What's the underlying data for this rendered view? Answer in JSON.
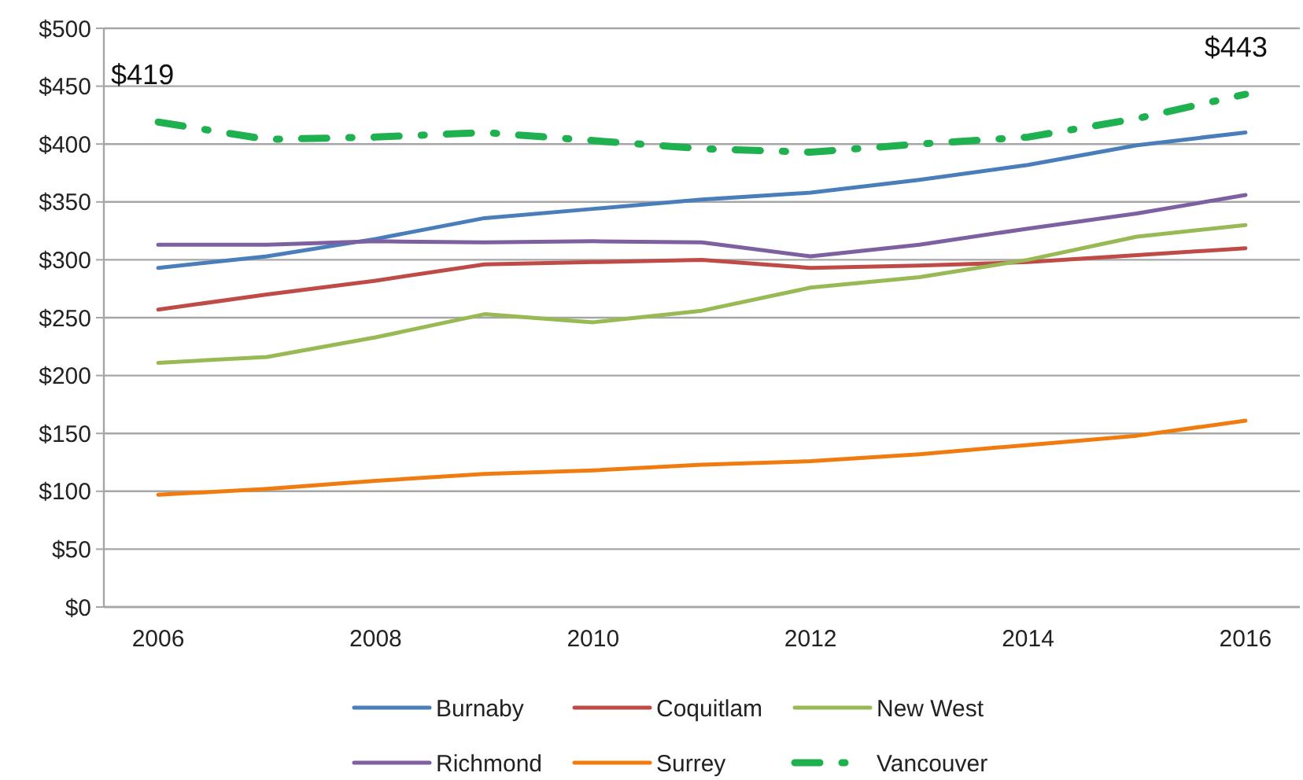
{
  "chart_data": {
    "type": "line",
    "x": [
      2006,
      2007,
      2008,
      2009,
      2010,
      2011,
      2012,
      2013,
      2014,
      2015,
      2016
    ],
    "xlim": [
      2005.5,
      2016.5
    ],
    "xticks": [
      2006,
      2008,
      2010,
      2012,
      2014,
      2016
    ],
    "ylim": [
      0,
      500
    ],
    "yticks": [
      {
        "value": 0,
        "label": "$0"
      },
      {
        "value": 50,
        "label": "$50"
      },
      {
        "value": 100,
        "label": "$100"
      },
      {
        "value": 150,
        "label": "$150"
      },
      {
        "value": 200,
        "label": "$200"
      },
      {
        "value": 250,
        "label": "$250"
      },
      {
        "value": 300,
        "label": "$300"
      },
      {
        "value": 350,
        "label": "$350"
      },
      {
        "value": 400,
        "label": "$400"
      },
      {
        "value": 450,
        "label": "$450"
      },
      {
        "value": 500,
        "label": "$500"
      }
    ],
    "grid": "y",
    "legend": "bottom",
    "series": [
      {
        "name": "Burnaby",
        "color": "#4a7ebb",
        "values": [
          293,
          303,
          318,
          336,
          344,
          352,
          358,
          369,
          382,
          399,
          410
        ]
      },
      {
        "name": "Coquitlam",
        "color": "#be4b48",
        "values": [
          257,
          270,
          282,
          296,
          298,
          300,
          293,
          295,
          298,
          304,
          310
        ]
      },
      {
        "name": "New West",
        "color": "#98b954",
        "values": [
          211,
          216,
          233,
          253,
          246,
          256,
          276,
          285,
          300,
          320,
          330
        ]
      },
      {
        "name": "Richmond",
        "color": "#7d60a0",
        "values": [
          313,
          313,
          316,
          315,
          316,
          315,
          303,
          313,
          327,
          340,
          356
        ]
      },
      {
        "name": "Surrey",
        "color": "#f07c10",
        "values": [
          97,
          102,
          109,
          115,
          118,
          123,
          126,
          132,
          140,
          148,
          161
        ]
      },
      {
        "name": "Vancouver",
        "color": "#1fb050",
        "line_style": "dashed",
        "values": [
          419,
          404,
          406,
          410,
          403,
          396,
          393,
          400,
          406,
          422,
          443
        ]
      }
    ],
    "annotations": [
      {
        "text": "$419",
        "x": 2006,
        "y": 419
      },
      {
        "text": "$443",
        "x": 2016,
        "y": 443
      }
    ]
  }
}
